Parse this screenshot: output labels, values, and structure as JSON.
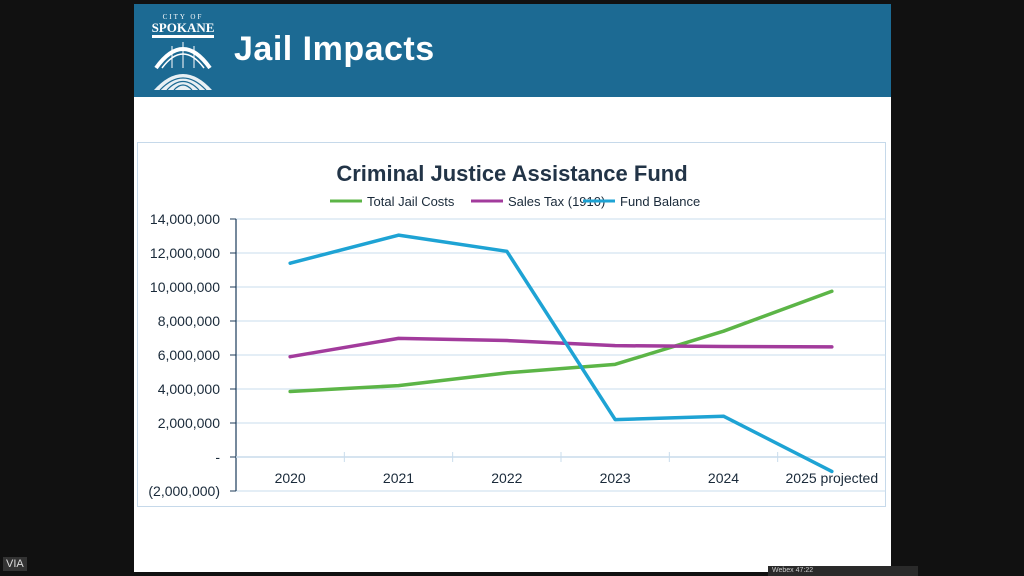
{
  "slide": {
    "title": "Jail Impacts",
    "logo_text": "CITY OF SPOKANE",
    "colors": {
      "header": "#1c6a93",
      "title_text": "#ffffff"
    }
  },
  "overlay": {
    "via_label": "VIA",
    "video_caption": "Webex 47:22"
  },
  "chart_data": {
    "type": "line",
    "title": "Criminal Justice Assistance Fund",
    "categories": [
      "2020",
      "2021",
      "2022",
      "2023",
      "2024",
      "2025 projected"
    ],
    "ylim": [
      -2000000,
      14000000
    ],
    "yticks": [
      14000000,
      12000000,
      10000000,
      8000000,
      6000000,
      4000000,
      2000000,
      0,
      -2000000
    ],
    "ytick_labels": [
      "14,000,000",
      "12,000,000",
      "10,000,000",
      "8,000,000",
      "6,000,000",
      "4,000,000",
      "2,000,000",
      "-",
      "(2,000,000)"
    ],
    "legend_position": "top",
    "grid": true,
    "series": [
      {
        "name": "Total Jail Costs",
        "color": "#5cb547",
        "values": [
          3850000,
          4200000,
          4950000,
          5450000,
          7400000,
          9750000
        ]
      },
      {
        "name": "Sales Tax (1910)",
        "color": "#a23b9c",
        "values": [
          5900000,
          6980000,
          6850000,
          6550000,
          6500000,
          6480000
        ]
      },
      {
        "name": "Fund Balance",
        "color": "#1ea3d4",
        "values": [
          11400000,
          13050000,
          12100000,
          2200000,
          2400000,
          -850000
        ]
      }
    ]
  }
}
